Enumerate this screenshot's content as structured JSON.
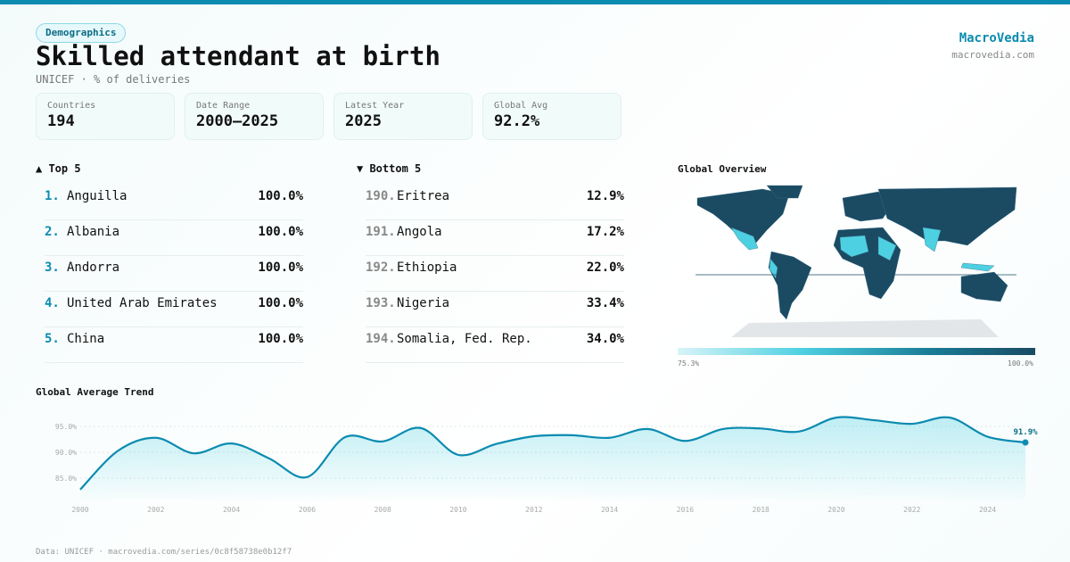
{
  "header": {
    "category": "Demographics",
    "title": "Skilled attendant at birth",
    "subtitle": "UNICEF · % of deliveries",
    "brand": "MacroVedia",
    "brand_url": "macrovedia.com"
  },
  "stats": [
    {
      "label": "Countries",
      "value": "194"
    },
    {
      "label": "Date Range",
      "value": "2000–2025"
    },
    {
      "label": "Latest Year",
      "value": "2025"
    },
    {
      "label": "Global Avg",
      "value": "92.2%"
    }
  ],
  "top5": {
    "title": "▲ Top 5",
    "items": [
      {
        "rank": "1.",
        "name": "Anguilla",
        "value": "100.0%"
      },
      {
        "rank": "2.",
        "name": "Albania",
        "value": "100.0%"
      },
      {
        "rank": "3.",
        "name": "Andorra",
        "value": "100.0%"
      },
      {
        "rank": "4.",
        "name": "United Arab Emirates",
        "value": "100.0%"
      },
      {
        "rank": "5.",
        "name": "China",
        "value": "100.0%"
      }
    ]
  },
  "bottom5": {
    "title": "▼ Bottom 5",
    "items": [
      {
        "rank": "190.",
        "name": "Eritrea",
        "value": "12.9%"
      },
      {
        "rank": "191.",
        "name": "Angola",
        "value": "17.2%"
      },
      {
        "rank": "192.",
        "name": "Ethiopia",
        "value": "22.0%"
      },
      {
        "rank": "193.",
        "name": "Nigeria",
        "value": "33.4%"
      },
      {
        "rank": "194.",
        "name": "Somalia, Fed. Rep.",
        "value": "34.0%"
      }
    ]
  },
  "map": {
    "title": "Global Overview",
    "legend_min": "75.3%",
    "legend_max": "100.0%",
    "colors": {
      "high": "#1a4b63",
      "mid": "#4dd0e1",
      "nodata": "#e3e6e8"
    }
  },
  "footer": "Data: UNICEF · macrovedia.com/series/0c8f58738e0b12f7",
  "chart_data": {
    "type": "area",
    "title": "Global Average Trend",
    "xlabel": "",
    "ylabel": "",
    "x": [
      2000,
      2001,
      2002,
      2003,
      2004,
      2005,
      2006,
      2007,
      2008,
      2009,
      2010,
      2011,
      2012,
      2013,
      2014,
      2015,
      2016,
      2017,
      2018,
      2019,
      2020,
      2021,
      2022,
      2023,
      2024,
      2025
    ],
    "values": [
      82.8,
      90.3,
      92.8,
      89.8,
      91.7,
      88.8,
      85.2,
      92.9,
      92.1,
      94.7,
      89.5,
      91.6,
      93.1,
      93.3,
      92.8,
      94.5,
      92.2,
      94.5,
      94.6,
      94.0,
      96.7,
      96.2,
      95.5,
      96.7,
      93.0,
      91.9
    ],
    "y_ticks": [
      "85.0%",
      "90.0%",
      "95.0%"
    ],
    "x_ticks": [
      "2000",
      "2002",
      "2004",
      "2006",
      "2008",
      "2010",
      "2012",
      "2014",
      "2016",
      "2018",
      "2020",
      "2022",
      "2024"
    ],
    "last_label": "91.9%",
    "color": "#0b8bb0",
    "grid": true
  }
}
